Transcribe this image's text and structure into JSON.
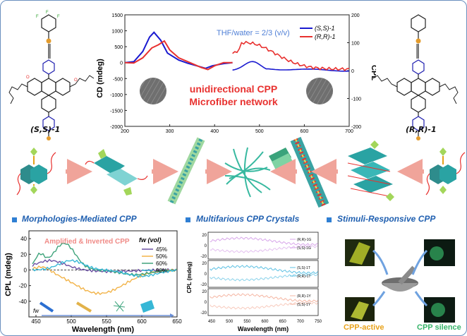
{
  "top_panel": {
    "mol_left_label": "(S,S)-1",
    "mol_right_label": "(R,R)-1",
    "molecule_atoms": {
      "fluorine": "F",
      "oxygen": "O"
    }
  },
  "cd_cpl_chart": {
    "condition": "THF/water = 2/3 (v/v)",
    "legend": [
      "(S,S)-1",
      "(R,R)-1"
    ],
    "overlay_line1": "unidirectional CPP",
    "overlay_line2": "Microfiber network",
    "y_left_label": "CD (mdeg)",
    "y_right_label": "CPL",
    "y_left_ticks": [
      "1500",
      "1000",
      "500",
      "0",
      "-500",
      "-1000",
      "-1500",
      "-2000"
    ],
    "y_right_ticks": [
      "200",
      "100",
      "0",
      "-100",
      "-200"
    ],
    "x_ticks": [
      "200",
      "300",
      "400",
      "500",
      "600",
      "700"
    ]
  },
  "sections": {
    "s1_title": "Morphologies-Mediated CPP",
    "s2_title": "Multifarious CPP Crystals",
    "s3_title": "Stimuli-Responsive CPP"
  },
  "cpl_fw_chart": {
    "annotation": "Amplified & Inverted CPP",
    "legend_header": "fw (vol)",
    "legend": [
      "45%",
      "50%",
      "60%",
      "90%"
    ],
    "y_label": "CPL (mdeg)",
    "x_label": "Wavelength (nm)",
    "x_ticks": [
      "450",
      "500",
      "550",
      "600",
      "650"
    ],
    "y_ticks": [
      "40",
      "20",
      "0",
      "-20",
      "-40"
    ],
    "arrow_label": "fw"
  },
  "crystals_chart": {
    "y_label": "CPL (mdeg)",
    "x_label": "Wavelength (nm)",
    "x_ticks": [
      "450",
      "500",
      "550",
      "600",
      "650",
      "700",
      "750"
    ],
    "panel_ticks": [
      "20",
      "0",
      "-20"
    ],
    "legends": [
      [
        "(R,R)-1G",
        "(S,S)-1G"
      ],
      [
        "(S,S)-1T",
        "(R,R)-1T"
      ],
      [
        "(R,R)-1Y",
        "(S,S)-1Y"
      ]
    ]
  },
  "stimuli": {
    "active_label": "CPP-active",
    "silence_label": "CPP silence"
  },
  "colors": {
    "frame": "#6a8fbf",
    "section_title": "#1f5fb0",
    "ss_curve": "#1a1ad0",
    "rr_curve": "#e8312f",
    "overlay_text": "#e8312f",
    "condition_text": "#4f7fd6",
    "arrow": "#f0a49a",
    "annotation": "#f08b87",
    "fw45": "#6b4fa3",
    "fw50": "#f2b348",
    "fw60": "#3fa37b",
    "fw90": "#37b7d6",
    "crystal_G": "#d8a6ea",
    "crystal_T": "#5cc0e3",
    "crystal_Y": "#f5b7a4",
    "active_label": "#e8a21b",
    "silence_label": "#37b46a"
  }
}
